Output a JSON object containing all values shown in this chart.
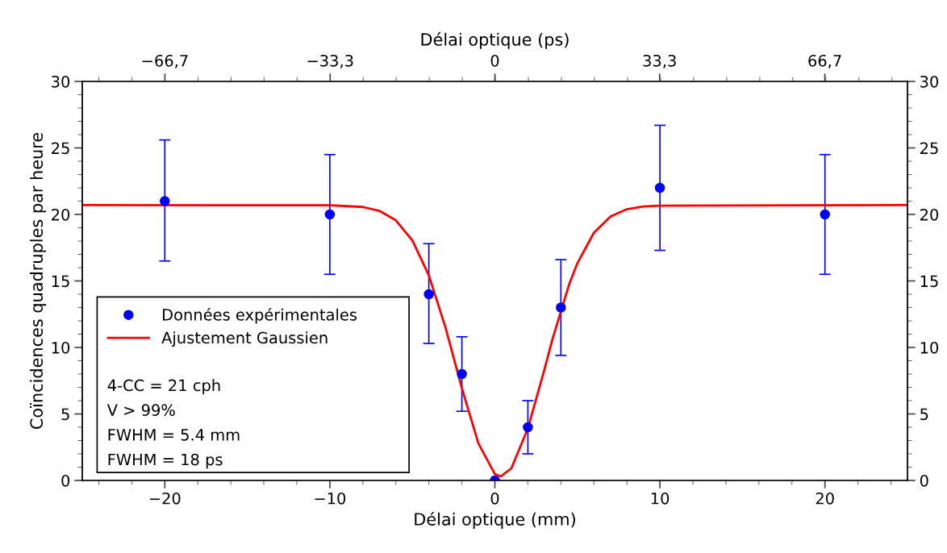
{
  "chart_data": {
    "type": "scatter",
    "xlabel": "Délai optique (mm)",
    "ylabel": "Coïncidences quadruples par heure",
    "x2label": "Délai optique (ps)",
    "xlim": [
      -25,
      25
    ],
    "xticks": [
      -20,
      -10,
      0,
      10,
      20
    ],
    "ylim": [
      0,
      30
    ],
    "yticks": [
      0,
      5,
      10,
      15,
      20,
      25,
      30
    ],
    "y2lim": [
      0,
      30
    ],
    "y2ticks": [
      0,
      5,
      10,
      15,
      20,
      25,
      30
    ],
    "x2lim": [
      -83.4,
      83.4
    ],
    "x2ticks": [
      {
        "value": -66.7,
        "label": "−66,7"
      },
      {
        "value": -33.3,
        "label": "−33,3"
      },
      {
        "value": 0,
        "label": "0"
      },
      {
        "value": 33.3,
        "label": "33,3"
      },
      {
        "value": 66.7,
        "label": "66,7"
      }
    ],
    "grid": false,
    "legend": "bottom left",
    "series": [
      {
        "name": "Données expérimentales",
        "marker": "circle",
        "color": "#0000ff",
        "x": [
          -20,
          -10,
          -4,
          -2,
          0,
          2,
          4,
          10,
          20
        ],
        "values": [
          21,
          20,
          14,
          8,
          0,
          4,
          13,
          22,
          20
        ],
        "errors": [
          [
            16.5,
            25.6
          ],
          [
            15.5,
            24.5
          ],
          [
            10.3,
            17.8
          ],
          [
            5.2,
            10.8
          ],
          null,
          [
            2.0,
            6.0
          ],
          [
            9.4,
            16.6
          ],
          [
            17.3,
            26.7
          ],
          [
            15.5,
            24.5
          ]
        ]
      },
      {
        "name": "Ajustement Gaussien",
        "type": "line",
        "color": "#ff0000",
        "x": [
          -25,
          -10,
          -8,
          -7,
          -6,
          -5,
          -4,
          -3,
          -2,
          -1,
          0,
          0.35,
          1,
          2,
          3,
          3.5,
          4.5,
          5,
          6,
          7,
          8,
          9,
          10,
          25
        ],
        "values": [
          20.7,
          20.69,
          20.56,
          20.27,
          19.56,
          18.05,
          15.42,
          11.54,
          6.95,
          2.79,
          0.48,
          0.3,
          0.91,
          3.91,
          8.33,
          10.66,
          14.74,
          16.33,
          18.62,
          19.84,
          20.39,
          20.6,
          20.66,
          20.7
        ]
      }
    ],
    "annotations": [
      "4-CC = 21 cph",
      "V > 99%",
      "FWHM = 5.4 mm",
      "FWHM = 18 ps"
    ]
  }
}
